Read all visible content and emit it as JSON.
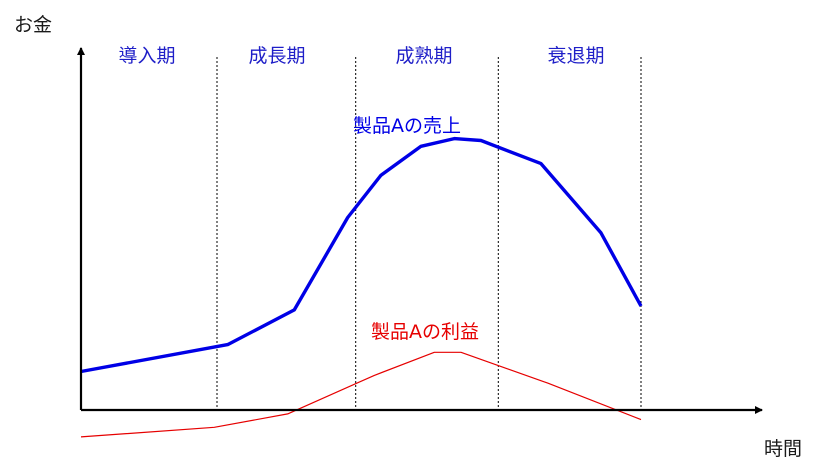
{
  "axes": {
    "y_label": "お金",
    "x_label": "時間"
  },
  "stages": [
    {
      "label": "導入期"
    },
    {
      "label": "成長期"
    },
    {
      "label": "成熟期"
    },
    {
      "label": "衰退期"
    }
  ],
  "colors": {
    "axis": "#000000",
    "stage_text": "#1f1fc8",
    "sales": "#0000e6",
    "profit": "#e60000",
    "divider": "#000000"
  },
  "chart_data": {
    "type": "line",
    "series": [
      {
        "name": "製品Aの売上",
        "points": [
          [
            0,
            10
          ],
          [
            11,
            17
          ],
          [
            16,
            26
          ],
          [
            20,
            50
          ],
          [
            22.5,
            61
          ],
          [
            25.5,
            68.5
          ],
          [
            28,
            70.5
          ],
          [
            30,
            70
          ],
          [
            34.5,
            64
          ],
          [
            39,
            46
          ],
          [
            42,
            27
          ]
        ]
      },
      {
        "name": "製品Aの利益",
        "points": [
          [
            0,
            -7
          ],
          [
            10,
            -4.5
          ],
          [
            15.5,
            -1
          ],
          [
            22,
            9
          ],
          [
            26.5,
            15
          ],
          [
            28.5,
            15
          ],
          [
            35,
            7
          ],
          [
            42,
            -2.5
          ]
        ]
      }
    ],
    "stage_boundaries": [
      10.2,
      20.6,
      31.3
    ],
    "xlim": [
      0,
      42
    ],
    "ylim": [
      -8,
      100
    ],
    "grid": false
  }
}
